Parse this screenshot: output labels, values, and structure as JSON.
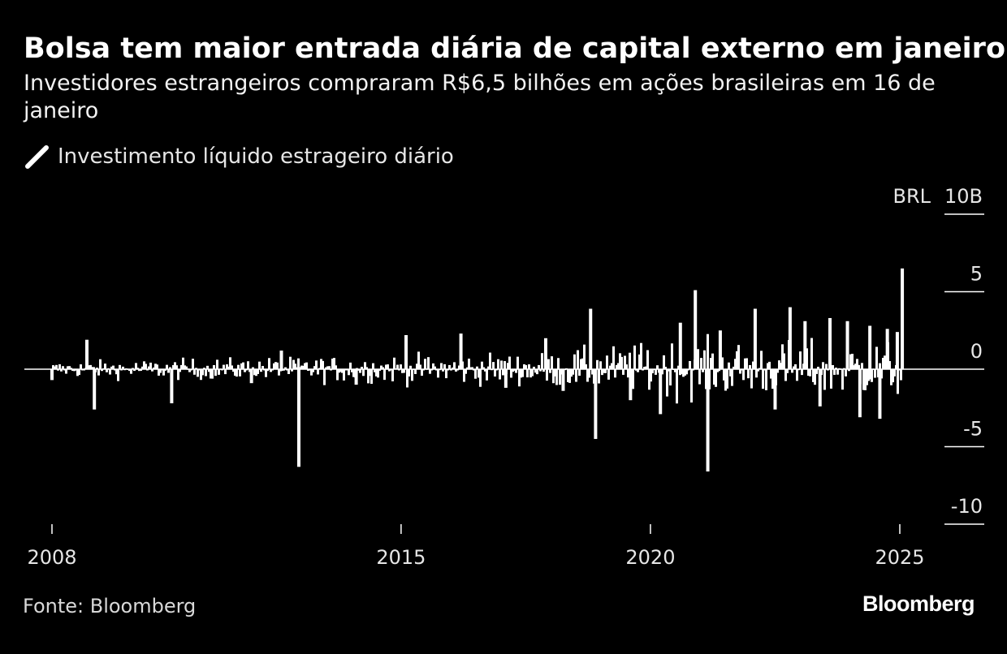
{
  "chart_data": {
    "type": "bar",
    "title": "Bolsa tem maior entrada diária de capital externo em janeiro",
    "subtitle": "Investidores estrangeiros compraram R$6,5 bilhões em ações brasileiras em 16 de janeiro",
    "ylabel": "BRL",
    "ylim": [
      -10,
      10
    ],
    "yticks": [
      10,
      5,
      0,
      -5,
      -10
    ],
    "ytick_labels": [
      "10B",
      "5",
      "0",
      "-5",
      "-10"
    ],
    "xlim": [
      2007.8,
      2025.3
    ],
    "xticks": [
      2008,
      2015,
      2020,
      2025
    ],
    "xtick_labels": [
      "2008",
      "2015",
      "2020",
      "2025"
    ],
    "grid": false,
    "legend_position": "top-left",
    "series": [
      {
        "name": "Investimento líquido estrageiro diário",
        "color": "#ffffff",
        "x": [
          2008.0,
          2008.7,
          2008.85,
          2010.4,
          2012.0,
          2012.6,
          2012.95,
          2014.1,
          2015.1,
          2016.2,
          2017.1,
          2017.9,
          2018.25,
          2018.8,
          2018.9,
          2019.6,
          2020.2,
          2020.6,
          2020.9,
          2021.15,
          2021.4,
          2022.1,
          2022.5,
          2022.8,
          2023.1,
          2023.4,
          2023.6,
          2023.95,
          2024.2,
          2024.4,
          2024.6,
          2024.75,
          2024.95,
          2025.05
        ],
        "values": [
          -0.7,
          1.9,
          -2.6,
          -2.2,
          -0.9,
          1.2,
          -6.3,
          -1.0,
          2.2,
          2.3,
          -1.2,
          2.0,
          -1.4,
          3.9,
          -4.5,
          -2.0,
          -2.9,
          3.0,
          5.1,
          -6.6,
          2.5,
          3.9,
          -2.6,
          4.0,
          3.1,
          -2.4,
          3.3,
          3.1,
          -3.1,
          2.8,
          -3.2,
          2.6,
          2.4,
          6.5
        ]
      }
    ]
  },
  "source": "Fonte: Bloomberg",
  "logo": "Bloomberg"
}
